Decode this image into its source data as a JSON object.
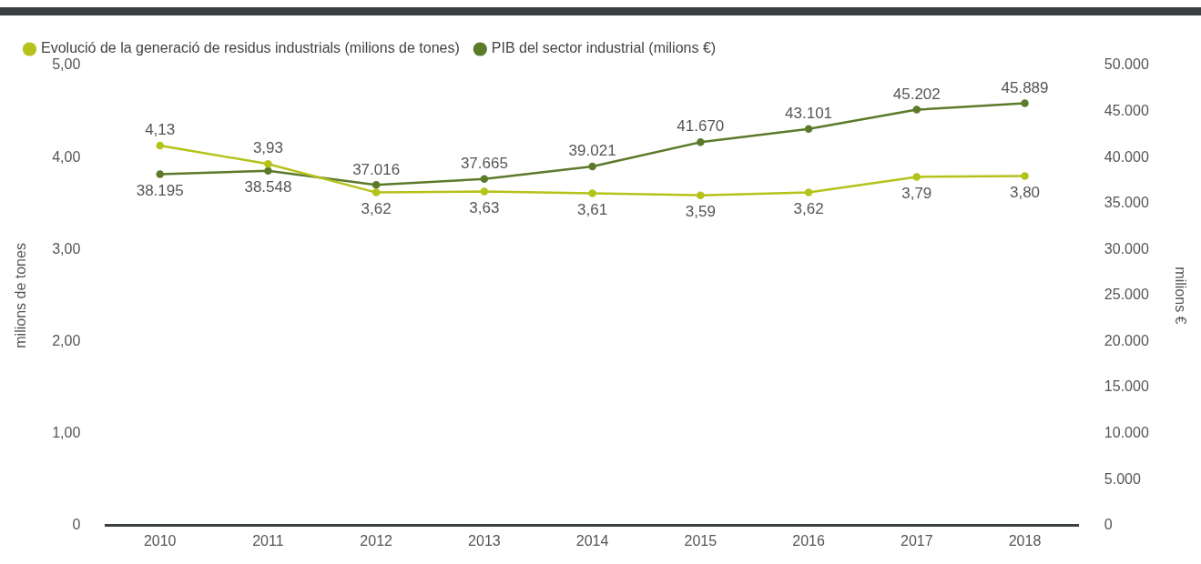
{
  "chart_data": {
    "type": "line",
    "categories": [
      "2010",
      "2011",
      "2012",
      "2013",
      "2014",
      "2015",
      "2016",
      "2017",
      "2018"
    ],
    "series": [
      {
        "name": "Evolució de la generació de residus industrials (milions de tones)",
        "color": "#b5c21a",
        "values": [
          4.13,
          3.93,
          3.62,
          3.63,
          3.61,
          3.59,
          3.62,
          3.79,
          3.8
        ],
        "value_labels": [
          "4,13",
          "3,93",
          "3,62",
          "3,63",
          "3,61",
          "3,59",
          "3,62",
          "3,79",
          "3,80"
        ]
      },
      {
        "name": "PIB del sector industrial (milions €)",
        "color": "#5b7a2a",
        "axis": "y2",
        "values": [
          38195,
          38548,
          37016,
          37665,
          39021,
          41670,
          43101,
          45202,
          45889
        ],
        "value_labels": [
          "38.195",
          "38.548",
          "37.016",
          "37.665",
          "39.021",
          "41.670",
          "43.101",
          "45.202",
          "45.889"
        ]
      }
    ],
    "ylabel": "milions de tones",
    "y2label": "milions €",
    "ylim": [
      0,
      5
    ],
    "yticks": [
      {
        "value": 0,
        "label": "0"
      },
      {
        "value": 1,
        "label": "1,00"
      },
      {
        "value": 2,
        "label": "2,00"
      },
      {
        "value": 3,
        "label": "3,00"
      },
      {
        "value": 4,
        "label": "4,00"
      },
      {
        "value": 5,
        "label": "5,00"
      }
    ],
    "y2lim": [
      0,
      50000
    ],
    "y2ticks": [
      {
        "value": 0,
        "label": "0"
      },
      {
        "value": 5000,
        "label": "5.000"
      },
      {
        "value": 10000,
        "label": "10.000"
      },
      {
        "value": 15000,
        "label": "15.000"
      },
      {
        "value": 20000,
        "label": "20.000"
      },
      {
        "value": 25000,
        "label": "25.000"
      },
      {
        "value": 30000,
        "label": "30.000"
      },
      {
        "value": 35000,
        "label": "35.000"
      },
      {
        "value": 40000,
        "label": "40.000"
      },
      {
        "value": 45000,
        "label": "45.000"
      },
      {
        "value": 50000,
        "label": "50.000"
      }
    ],
    "grid": false,
    "legend": "top left",
    "marker": "circle",
    "line_style": "solid"
  }
}
